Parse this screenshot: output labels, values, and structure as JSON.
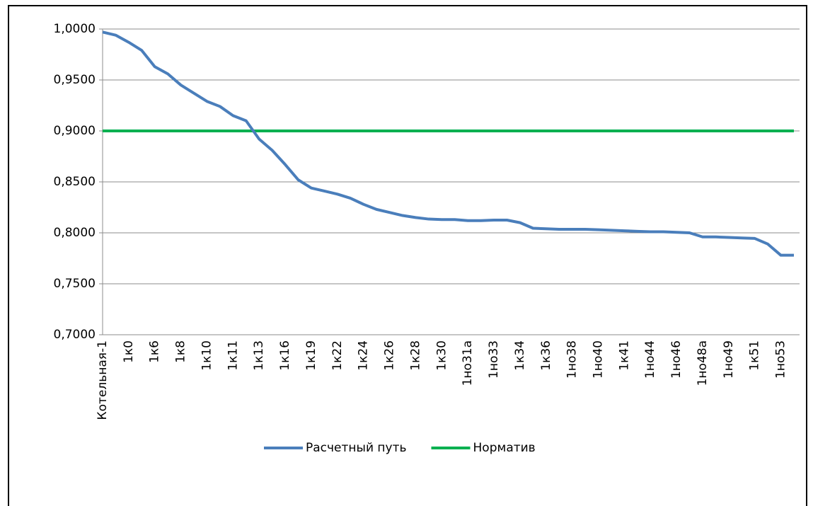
{
  "chart_data": {
    "type": "line",
    "categories": [
      "Котельная-1",
      null,
      "1к0",
      null,
      "1к6",
      null,
      "1к8",
      null,
      "1к10",
      null,
      "1к11",
      null,
      "1к13",
      null,
      "1к16",
      null,
      "1к19",
      null,
      "1к22",
      null,
      "1к24",
      null,
      "1к26",
      null,
      "1к28",
      null,
      "1к30",
      null,
      "1но31а",
      null,
      "1но33",
      null,
      "1к34",
      null,
      "1к36",
      null,
      "1но38",
      null,
      "1но40",
      null,
      "1к41",
      null,
      "1но44",
      null,
      "1но46",
      null,
      "1но48а",
      null,
      "1но49",
      null,
      "1к51",
      null,
      "1но53",
      null
    ],
    "series": [
      {
        "name": "Расчетный путь",
        "color": "#4a7ebb",
        "values": [
          0.997,
          0.994,
          0.987,
          0.979,
          0.963,
          0.956,
          0.945,
          0.937,
          0.929,
          0.924,
          0.915,
          0.91,
          0.892,
          0.881,
          0.867,
          0.852,
          0.844,
          0.841,
          0.838,
          0.834,
          0.828,
          0.823,
          0.82,
          0.817,
          0.815,
          0.8135,
          0.813,
          0.813,
          0.812,
          0.812,
          0.8125,
          0.8125,
          0.81,
          0.8045,
          0.804,
          0.8035,
          0.8035,
          0.8035,
          0.803,
          0.8025,
          0.802,
          0.8015,
          0.801,
          0.801,
          0.8005,
          0.8,
          0.796,
          0.796,
          0.7955,
          0.795,
          0.7945,
          0.789,
          0.778,
          0.778
        ]
      },
      {
        "name": "Норматив",
        "color": "#00b050",
        "values": [
          0.9,
          0.9,
          0.9,
          0.9,
          0.9,
          0.9,
          0.9,
          0.9,
          0.9,
          0.9,
          0.9,
          0.9,
          0.9,
          0.9,
          0.9,
          0.9,
          0.9,
          0.9,
          0.9,
          0.9,
          0.9,
          0.9,
          0.9,
          0.9,
          0.9,
          0.9,
          0.9,
          0.9,
          0.9,
          0.9,
          0.9,
          0.9,
          0.9,
          0.9,
          0.9,
          0.9,
          0.9,
          0.9,
          0.9,
          0.9,
          0.9,
          0.9,
          0.9,
          0.9,
          0.9,
          0.9,
          0.9,
          0.9,
          0.9,
          0.9,
          0.9,
          0.9,
          0.9,
          0.9
        ]
      }
    ],
    "ylim": [
      0.7,
      1.0
    ],
    "yticks": [
      {
        "value": 0.7,
        "label": "0,7000"
      },
      {
        "value": 0.75,
        "label": "0,7500"
      },
      {
        "value": 0.8,
        "label": "0,8000"
      },
      {
        "value": 0.85,
        "label": "0,8500"
      },
      {
        "value": 0.9,
        "label": "0,9000"
      },
      {
        "value": 0.95,
        "label": "0,9500"
      },
      {
        "value": 1.0,
        "label": "1,0000"
      }
    ],
    "grid": true,
    "legend": "bottom"
  }
}
